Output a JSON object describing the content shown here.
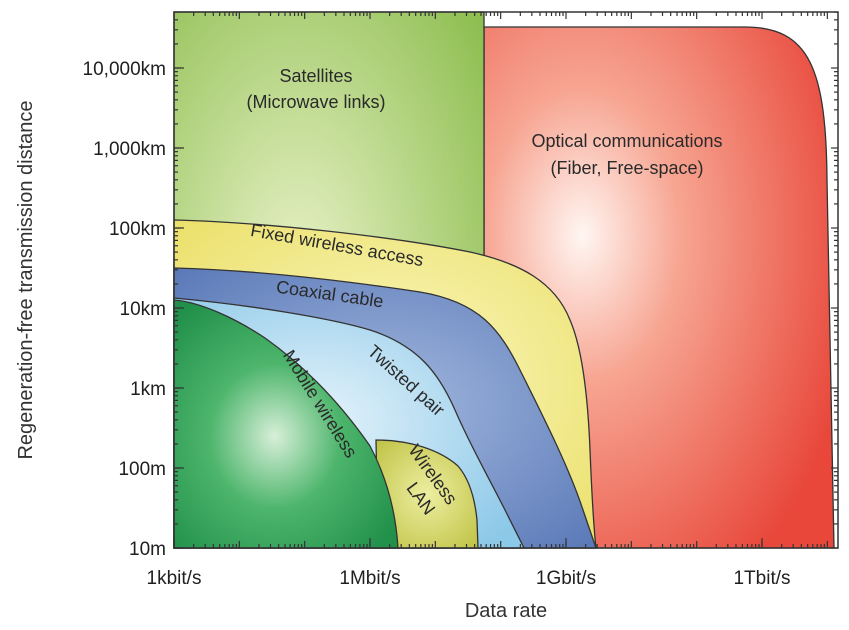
{
  "chart_data": {
    "type": "area",
    "title": "",
    "xlabel": "Data rate",
    "ylabel": "Regeneration-free transmission distance",
    "x_scale": "log",
    "y_scale": "log",
    "x_ticks": [
      {
        "value": 1000,
        "label": "1kbit/s"
      },
      {
        "value": 1000000,
        "label": "1Mbit/s"
      },
      {
        "value": 1000000000,
        "label": "1Gbit/s"
      },
      {
        "value": 1000000000000,
        "label": "1Tbit/s"
      }
    ],
    "y_ticks": [
      {
        "value": 10,
        "label": "10m"
      },
      {
        "value": 100,
        "label": "100m"
      },
      {
        "value": 1000,
        "label": "1km"
      },
      {
        "value": 10000,
        "label": "10km"
      },
      {
        "value": 100000,
        "label": "100km"
      },
      {
        "value": 1000000,
        "label": "1,000km"
      },
      {
        "value": 10000000,
        "label": "10,000km"
      }
    ],
    "xlim_bits_per_s": [
      1000,
      20000000000000
    ],
    "ylim_m": [
      10,
      40000000
    ],
    "grid": false,
    "regions": [
      {
        "label": "Optical communications",
        "label2": "(Fiber, Free-space)",
        "color": "#ec5840",
        "max_rate_bits_per_s": 3000000000000,
        "max_distance_m": 30000000
      },
      {
        "label": "Satellites",
        "label2": "(Microwave links)",
        "color": "#a9cf6c",
        "max_rate_bits_per_s": 300000000,
        "max_distance_m": 40000000
      },
      {
        "label": "Fixed wireless access",
        "color": "#f2ea85",
        "max_rate_bits_per_s": 2000000000,
        "max_distance_m": 120000
      },
      {
        "label": "Coaxial cable",
        "color": "#6f8cc6",
        "max_rate_bits_per_s": 2000000000,
        "max_distance_m": 30000
      },
      {
        "label": "Twisted pair",
        "color": "#a7d6ee",
        "max_rate_bits_per_s": 300000000,
        "max_distance_m": 13000
      },
      {
        "label": "Mobile wireless",
        "color": "#32a860",
        "max_rate_bits_per_s": 3000000,
        "max_distance_m": 13000
      },
      {
        "label": "Wireless",
        "label2": "LAN",
        "color": "#c9cc55",
        "max_rate_bits_per_s": 40000000,
        "max_distance_m": 230
      }
    ]
  }
}
